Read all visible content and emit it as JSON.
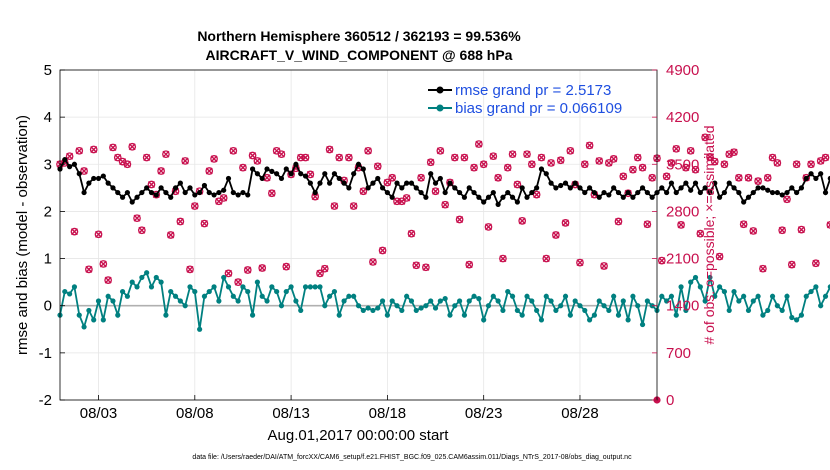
{
  "chart_data": {
    "type": "line",
    "title_line1": "Northern Hemisphere 360512 / 362193 = 99.536%",
    "title_line2": "AIRCRAFT_V_WIND_COMPONENT @ 688 hPa",
    "xlabel": "Aug.01,2017 00:00:00 start",
    "ylabel": "rmse and bias (model - observation)",
    "ylabel_right": "# of obs: o=possible; ×=assimilated",
    "footnote": "data file: /Users/raeder/DAI/ATM_forcXX/CAM6_setup/f.e21.FHIST_BGC.f09_025.CAM6assim.011/Diags_NTrS_2017-08/obs_diag_output.nc",
    "xlim": [
      1.0,
      32.0
    ],
    "ylim": [
      -2,
      5
    ],
    "ylim_right": [
      0,
      4900
    ],
    "xticks": [
      3,
      8,
      13,
      18,
      23,
      28
    ],
    "xtick_labels": [
      "08/03",
      "08/08",
      "08/13",
      "08/18",
      "08/23",
      "08/28"
    ],
    "yticks": [
      -2,
      -1,
      0,
      1,
      2,
      3,
      4,
      5
    ],
    "ytick_labels": [
      "-2",
      "-1",
      "0",
      "1",
      "2",
      "3",
      "4",
      "5"
    ],
    "yticks_right": [
      0,
      700,
      1400,
      2100,
      2800,
      3500,
      4200,
      4900
    ],
    "ytick_labels_right": [
      "0",
      "700",
      "1400",
      "2100",
      "2800",
      "3500",
      "4200",
      "4900"
    ],
    "legend": [
      {
        "label": "rmse grand pr = 2.5173",
        "color": "#000000"
      },
      {
        "label": "bias grand pr = 0.066109",
        "color": "#008080"
      }
    ],
    "colors": {
      "rmse": "#000000",
      "bias": "#008080",
      "obs": "#c8104e",
      "zero": "#b0b0b0"
    },
    "start_day": 1.0,
    "step_days": 0.25,
    "series": [
      {
        "name": "rmse",
        "values": [
          2.9,
          3.1,
          2.95,
          3.0,
          2.8,
          2.4,
          2.6,
          2.7,
          2.7,
          2.75,
          2.6,
          2.5,
          2.4,
          2.3,
          2.4,
          2.2,
          2.3,
          2.4,
          2.5,
          2.4,
          2.35,
          2.5,
          2.4,
          2.3,
          2.5,
          2.6,
          2.4,
          2.5,
          2.35,
          2.4,
          2.55,
          2.4,
          2.35,
          2.4,
          2.45,
          2.7,
          2.4,
          2.35,
          2.4,
          2.35,
          2.9,
          2.8,
          2.7,
          2.9,
          2.85,
          2.8,
          2.7,
          2.9,
          2.8,
          3.0,
          2.8,
          2.75,
          2.6,
          2.4,
          2.6,
          2.8,
          2.6,
          2.8,
          2.7,
          2.6,
          2.5,
          2.8,
          3.0,
          2.9,
          2.5,
          2.6,
          2.7,
          2.5,
          2.4,
          2.3,
          2.6,
          2.5,
          2.6,
          2.6,
          2.5,
          2.4,
          2.3,
          2.8,
          2.6,
          2.7,
          2.4,
          2.6,
          2.5,
          2.4,
          2.3,
          2.5,
          2.4,
          2.3,
          2.2,
          2.3,
          2.4,
          2.15,
          2.3,
          2.4,
          2.3,
          2.2,
          2.5,
          2.3,
          2.4,
          2.5,
          2.9,
          2.8,
          2.6,
          2.5,
          2.55,
          2.6,
          2.5,
          2.6,
          2.5,
          2.4,
          2.5,
          2.4,
          2.3,
          2.4,
          2.35,
          2.5,
          2.4,
          2.3,
          2.4,
          2.3,
          2.4,
          2.5,
          2.4,
          2.3,
          2.4,
          2.5,
          2.4,
          2.6,
          2.4,
          2.5,
          2.6,
          2.45,
          2.6,
          2.4,
          2.5,
          2.4,
          2.6,
          2.3,
          2.4,
          2.6,
          2.5,
          2.4,
          2.2,
          2.3,
          2.4,
          2.5,
          2.5,
          2.45,
          2.4,
          2.4,
          2.35,
          2.4,
          2.5,
          2.4,
          2.5,
          2.7,
          2.8,
          2.7,
          2.8,
          2.4,
          2.7,
          2.9,
          2.6,
          2.7
        ]
      },
      {
        "name": "bias",
        "values": [
          -0.2,
          0.3,
          0.25,
          0.4,
          -0.2,
          -0.45,
          -0.1,
          -0.3,
          0.1,
          -0.3,
          0.2,
          0.1,
          -0.2,
          0.3,
          0.2,
          0.5,
          0.4,
          0.6,
          0.7,
          0.4,
          0.6,
          0.5,
          -0.2,
          0.3,
          0.2,
          0.1,
          0.0,
          0.4,
          0.3,
          -0.5,
          0.2,
          0.3,
          0.4,
          0.1,
          0.6,
          0.4,
          0.2,
          0.1,
          0.4,
          0.3,
          -0.2,
          0.5,
          0.2,
          0.1,
          0.4,
          0.3,
          0.0,
          0.3,
          0.4,
          0.1,
          -0.1,
          0.4,
          0.4,
          0.4,
          0.4,
          0.0,
          0.2,
          0.3,
          -0.2,
          0.1,
          0.2,
          0.2,
          0.0,
          -0.1,
          -0.05,
          -0.1,
          -0.05,
          0.1,
          -0.2,
          0.1,
          0.0,
          -0.1,
          0.2,
          0.1,
          -0.1,
          -0.05,
          0.0,
          0.1,
          -0.05,
          0.1,
          0.15,
          -0.2,
          0.0,
          0.1,
          -0.2,
          0.1,
          0.2,
          0.15,
          -0.3,
          0.0,
          0.2,
          0.1,
          -0.1,
          0.3,
          0.2,
          -0.1,
          -0.2,
          0.2,
          0.1,
          -0.1,
          -0.3,
          0.2,
          0.1,
          -0.1,
          0.0,
          0.2,
          -0.2,
          0.1,
          0.0,
          -0.1,
          -0.3,
          -0.2,
          0.1,
          0.0,
          -0.1,
          0.2,
          -0.2,
          0.1,
          -0.3,
          0.2,
          0.0,
          -0.4,
          0.1,
          0.0,
          -0.1,
          0.2,
          0.1,
          0.2,
          -0.2,
          0.4,
          -0.1,
          0.5,
          0.6,
          0.4,
          0.1,
          0.6,
          0.2,
          0.4,
          0.3,
          -0.1,
          0.3,
          0.1,
          0.2,
          -0.1,
          0.1,
          0.2,
          -0.2,
          -0.1,
          0.2,
          0.0,
          -0.1,
          0.2,
          -0.25,
          -0.3,
          -0.2,
          0.2,
          0.3,
          0.4,
          0.0,
          0.2,
          0.4,
          0.5
        ]
      },
      {
        "name": "obs_possible",
        "values": [
          3500,
          3520,
          3620,
          2500,
          3700,
          3400,
          1940,
          3720,
          2460,
          2020,
          1780,
          3750,
          3600,
          3540,
          3500,
          3760,
          2700,
          2520,
          3600,
          3200,
          3050,
          3400,
          3650,
          2450,
          3100,
          2650,
          3550,
          1940,
          2880,
          3100,
          2620,
          3400,
          3580,
          2950,
          3000,
          1880,
          3700,
          1750,
          3450,
          1930,
          3630,
          3550,
          1960,
          3300,
          3070,
          3700,
          3650,
          1980,
          3350,
          3440,
          3600,
          3600,
          3350,
          3020,
          1880,
          1950,
          3720,
          2880,
          3600,
          3260,
          3600,
          2880,
          3450,
          3100,
          3700,
          2050,
          3470,
          2220,
          3230,
          3300,
          2950,
          2950,
          3000,
          2470,
          2000,
          3300,
          1970,
          3530,
          3100,
          3700,
          2900,
          3230,
          3600,
          2680,
          3600,
          2010,
          3450,
          3800,
          3500,
          2570,
          3620,
          3300,
          2100,
          3450,
          3650,
          3200,
          2660,
          3650,
          3500,
          3050,
          3600,
          2100,
          3520,
          2450,
          3560,
          2630,
          3700,
          3200,
          2040,
          3500,
          3780,
          3050,
          3550,
          1990,
          3520,
          3580,
          2650,
          3320,
          3070,
          3420,
          3600,
          3450,
          2610,
          3300,
          3590,
          2070,
          3320,
          3520,
          3730,
          2600,
          3450,
          3700,
          3420,
          2470,
          3900,
          3610,
          3540,
          2130,
          3500,
          3650,
          3680,
          3300,
          2610,
          3300,
          2510,
          3250,
          1950,
          3300,
          3600,
          3520,
          2520,
          2980,
          2010,
          3500,
          2530,
          3300,
          3500,
          2030,
          3550,
          3600,
          2600,
          3230,
          3550,
          2550
        ]
      }
    ]
  }
}
